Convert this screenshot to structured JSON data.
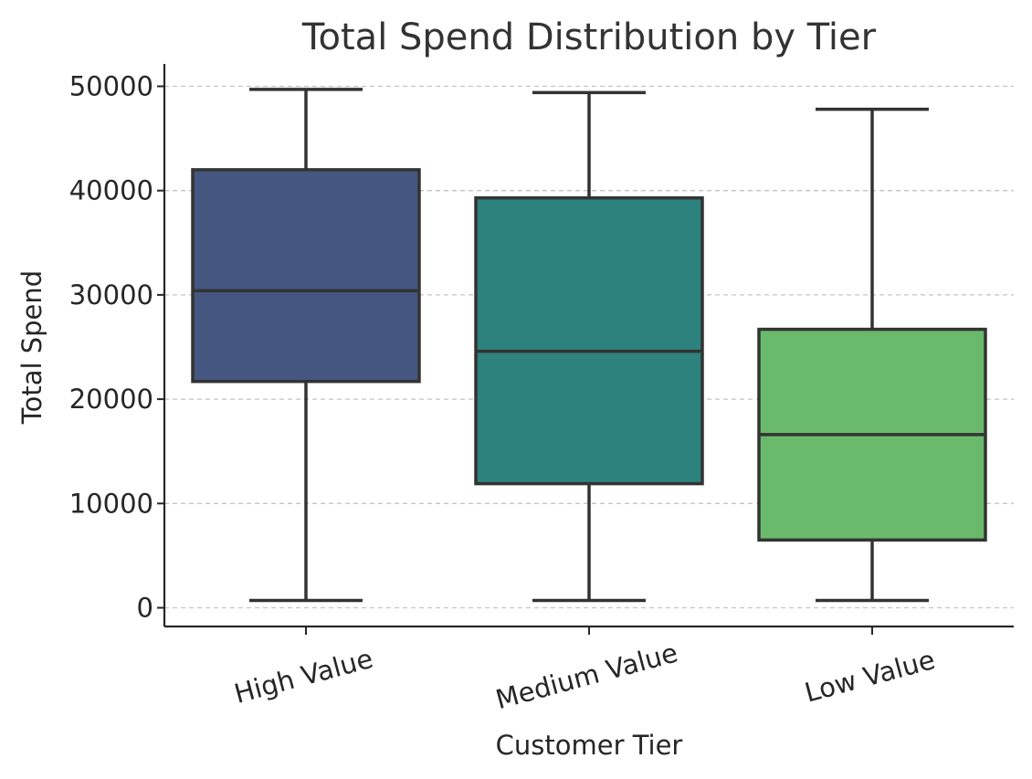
{
  "chart_data": {
    "type": "box",
    "title": "Total Spend Distribution by Tier",
    "xlabel": "Customer Tier",
    "ylabel": "Total Spend",
    "ylim": [
      -1800,
      52200
    ],
    "yticks": [
      0,
      10000,
      20000,
      30000,
      40000,
      50000
    ],
    "grid": "y-dashed",
    "categories": [
      "High Value",
      "Medium Value",
      "Low Value"
    ],
    "boxes": [
      {
        "category": "High Value",
        "min": 700,
        "q1": 21700,
        "median": 30400,
        "q3": 42000,
        "max": 49700,
        "color": "#455780"
      },
      {
        "category": "Medium Value",
        "min": 700,
        "q1": 11900,
        "median": 24600,
        "q3": 39300,
        "max": 49400,
        "color": "#2e827d"
      },
      {
        "category": "Low Value",
        "min": 700,
        "q1": 6500,
        "median": 16600,
        "q3": 26700,
        "max": 47800,
        "color": "#6aba6c"
      }
    ]
  }
}
